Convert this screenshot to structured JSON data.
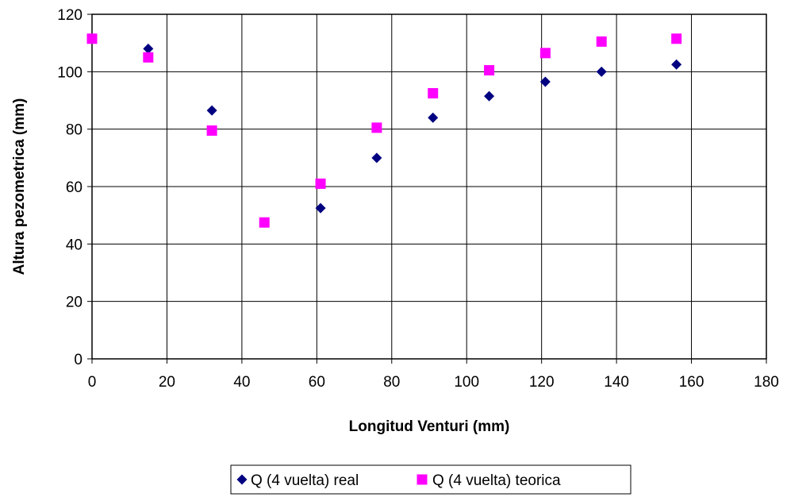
{
  "chart_data": {
    "type": "scatter",
    "title": "",
    "xlabel": "Longitud Venturi (mm)",
    "ylabel": "Altura pezometrica (mm)",
    "xlim": [
      0,
      180
    ],
    "ylim": [
      0,
      120
    ],
    "x_ticks": [
      0,
      20,
      40,
      60,
      80,
      100,
      120,
      140,
      160,
      180
    ],
    "y_ticks": [
      0,
      20,
      40,
      60,
      80,
      100,
      120
    ],
    "grid": true,
    "legend_position": "bottom",
    "series": [
      {
        "name": "Q (4 vuelta) real",
        "marker": "diamond",
        "color": "#000080",
        "points": [
          [
            0,
            111.5
          ],
          [
            15,
            108
          ],
          [
            32,
            86.5
          ],
          [
            46,
            47.5
          ],
          [
            61,
            52.5
          ],
          [
            76,
            70
          ],
          [
            91,
            84
          ],
          [
            106,
            91.5
          ],
          [
            121,
            96.5
          ],
          [
            136,
            100
          ],
          [
            156,
            102.5
          ]
        ]
      },
      {
        "name": "Q (4 vuelta) teorica",
        "marker": "square",
        "color": "#ff00ff",
        "points": [
          [
            0,
            111.5
          ],
          [
            15,
            105
          ],
          [
            32,
            79.5
          ],
          [
            46,
            47.5
          ],
          [
            61,
            61
          ],
          [
            76,
            80.5
          ],
          [
            91,
            92.5
          ],
          [
            106,
            100.5
          ],
          [
            121,
            106.5
          ],
          [
            136,
            110.5
          ],
          [
            156,
            111.5
          ]
        ]
      }
    ]
  }
}
